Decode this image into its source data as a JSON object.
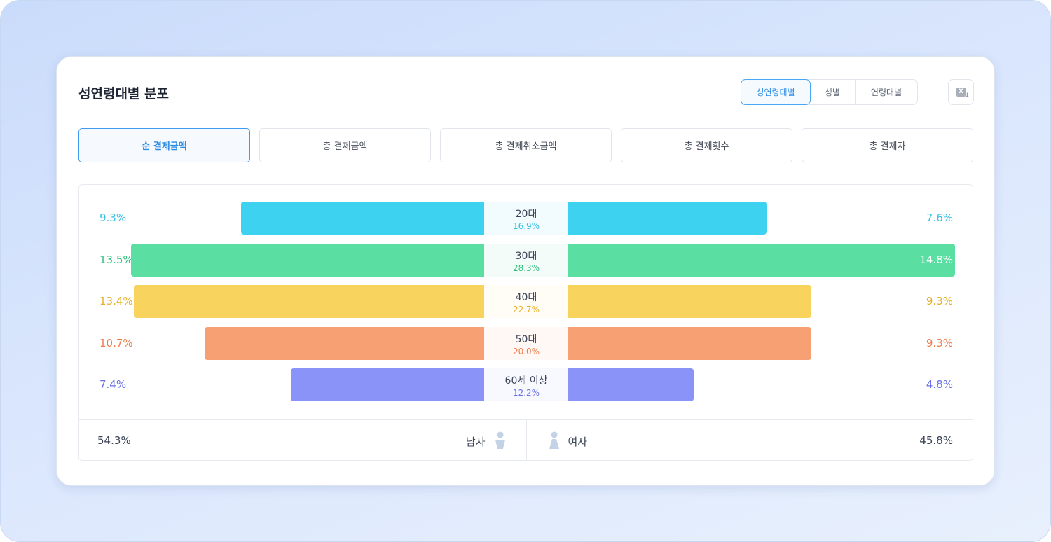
{
  "header": {
    "title": "성연령대별 분포",
    "segments": [
      "성연령대별",
      "성별",
      "연령대별"
    ],
    "active_segment": 0,
    "excel_icon_label": "X"
  },
  "metric_tabs": [
    "순 결제금액",
    "총 결제금액",
    "총 결제취소금액",
    "총 결제횟수",
    "총 결제자"
  ],
  "active_tab": 0,
  "chart_data": {
    "type": "bar",
    "subtype": "population-pyramid",
    "categories": [
      "20대",
      "30대",
      "40대",
      "50대",
      "60세 이상"
    ],
    "totals": [
      "16.9%",
      "28.3%",
      "22.7%",
      "20.0%",
      "12.2%"
    ],
    "series": [
      {
        "name": "남자",
        "values": [
          9.3,
          13.5,
          13.4,
          10.7,
          7.4
        ],
        "labels": [
          "9.3%",
          "13.5%",
          "13.4%",
          "10.7%",
          "7.4%"
        ]
      },
      {
        "name": "여자",
        "values": [
          7.6,
          14.8,
          9.3,
          9.3,
          4.8
        ],
        "labels": [
          "7.6%",
          "14.8%",
          "9.3%",
          "9.3%",
          "4.8%"
        ]
      }
    ],
    "colors": [
      "#3dd2f0",
      "#5bdea2",
      "#f8d35d",
      "#f6a073",
      "#8a93f7"
    ],
    "text_colors": [
      "#36c1e3",
      "#2fbf7d",
      "#e5b128",
      "#ee7e4e",
      "#6a73e8"
    ],
    "tint_colors": [
      "#f2fbfe",
      "#f3fcf8",
      "#fffdf5",
      "#fff8f5",
      "#f8f8ff"
    ]
  },
  "footer": {
    "male_pct": "54.3%",
    "male_label": "남자",
    "female_label": "여자",
    "female_pct": "45.8%"
  }
}
